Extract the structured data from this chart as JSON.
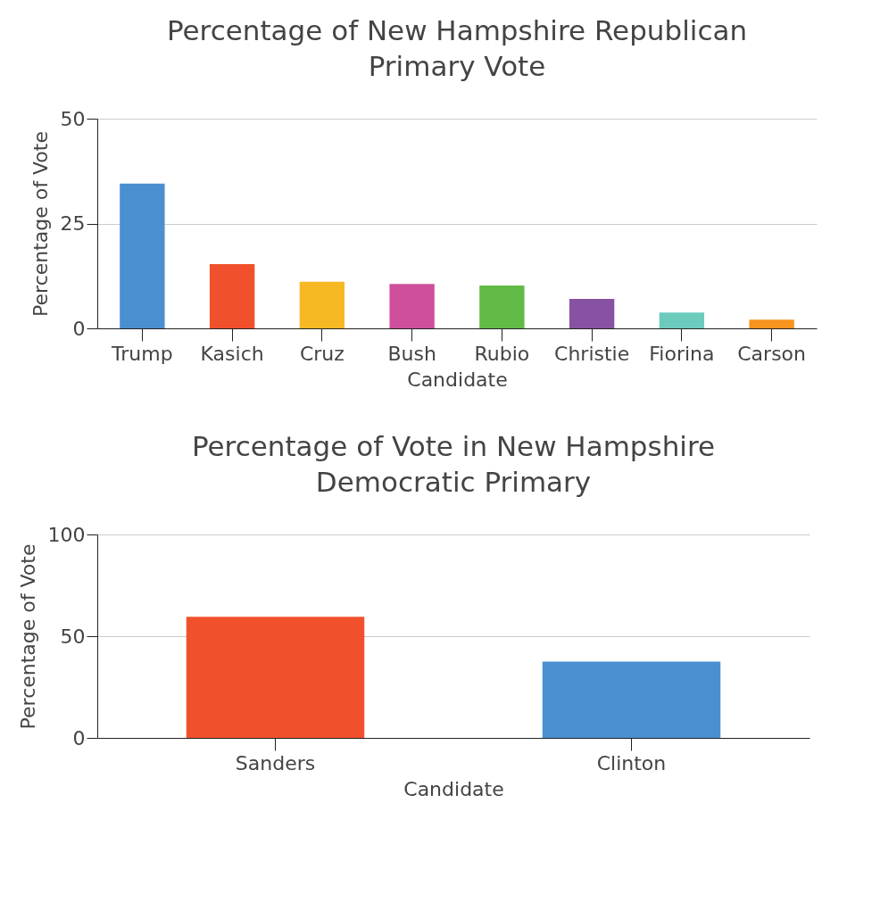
{
  "chart_data": [
    {
      "type": "bar",
      "title": "Percentage of New Hampshire Republican Primary Vote",
      "xlabel": "Candidate",
      "ylabel": "Percentage of Vote",
      "categories": [
        "Trump",
        "Kasich",
        "Cruz",
        "Bush",
        "Rubio",
        "Christie",
        "Fiorina",
        "Carson"
      ],
      "values": [
        34.5,
        15.3,
        11.1,
        10.6,
        10.2,
        7.0,
        3.8,
        2.1
      ],
      "colors": [
        "#4a8fd0",
        "#f0512c",
        "#f6b924",
        "#cf4f9c",
        "#62bb46",
        "#8752a1",
        "#6ccbbd",
        "#f7931e"
      ],
      "ylim": [
        0,
        50
      ],
      "yticks": [
        0,
        25,
        50
      ],
      "grid": "y"
    },
    {
      "type": "bar",
      "title": "Percentage of Vote in New Hampshire Democratic Primary",
      "xlabel": "Candidate",
      "ylabel": "Percentage of Vote",
      "categories": [
        "Sanders",
        "Clinton"
      ],
      "values": [
        59.5,
        37.5
      ],
      "colors": [
        "#f0512c",
        "#4a8fd0"
      ],
      "ylim": [
        0,
        100
      ],
      "yticks": [
        0,
        50,
        100
      ],
      "grid": "y"
    }
  ]
}
